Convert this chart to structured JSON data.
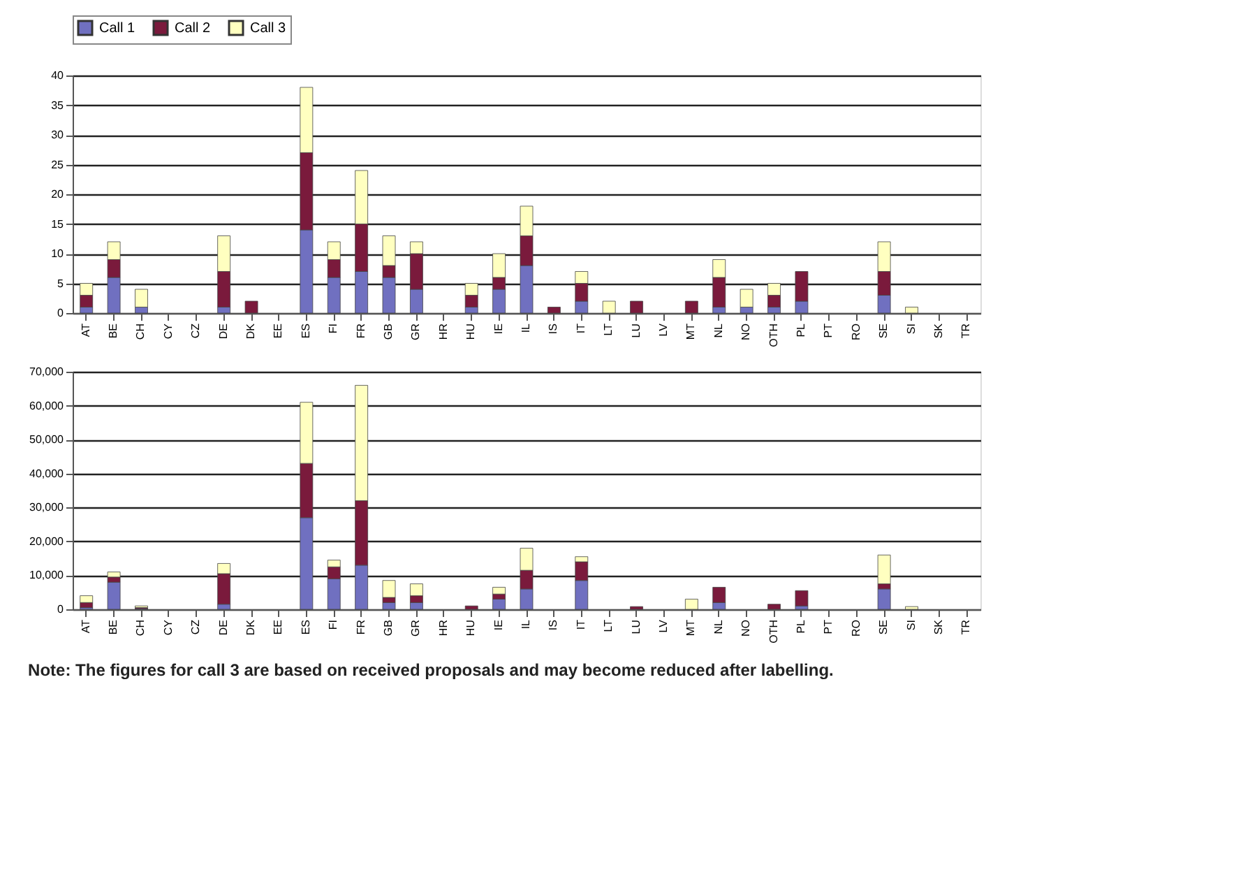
{
  "chart_data": [
    {
      "type": "bar",
      "stacked": true,
      "legend": "top",
      "grid": "y",
      "categories": [
        "AT",
        "BE",
        "CH",
        "CY",
        "CZ",
        "DE",
        "DK",
        "EE",
        "ES",
        "FI",
        "FR",
        "GB",
        "GR",
        "HR",
        "HU",
        "IE",
        "IL",
        "IS",
        "IT",
        "LT",
        "LU",
        "LV",
        "MT",
        "NL",
        "NO",
        "OTH",
        "PL",
        "PT",
        "RO",
        "SE",
        "SI",
        "SK",
        "TR"
      ],
      "series": [
        {
          "name": "Call 1",
          "color": "#7070c0",
          "values": [
            1,
            6,
            1,
            0,
            0,
            1,
            0,
            0,
            14,
            6,
            7,
            6,
            4,
            0,
            1,
            4,
            8,
            0,
            2,
            0,
            0,
            0,
            0,
            1,
            1,
            1,
            2,
            0,
            0,
            3,
            0,
            0,
            0
          ]
        },
        {
          "name": "Call 2",
          "color": "#7a1a3c",
          "values": [
            2,
            3,
            0,
            0,
            0,
            6,
            2,
            0,
            13,
            3,
            8,
            2,
            6,
            0,
            2,
            2,
            5,
            1,
            3,
            0,
            2,
            0,
            2,
            5,
            0,
            2,
            5,
            0,
            0,
            4,
            0,
            0,
            0
          ]
        },
        {
          "name": "Call 3",
          "color": "#ffffc0",
          "values": [
            2,
            3,
            3,
            0,
            0,
            6,
            0,
            0,
            11,
            3,
            9,
            5,
            2,
            0,
            2,
            4,
            5,
            0,
            2,
            2,
            0,
            0,
            0,
            3,
            3,
            2,
            0,
            0,
            0,
            5,
            1,
            0,
            0
          ]
        }
      ],
      "ylim": [
        0,
        40
      ],
      "yticks": [
        0,
        5,
        10,
        15,
        20,
        25,
        30,
        35,
        40
      ]
    },
    {
      "type": "bar",
      "stacked": true,
      "legend": "top",
      "grid": "y",
      "categories": [
        "AT",
        "BE",
        "CH",
        "CY",
        "CZ",
        "DE",
        "DK",
        "EE",
        "ES",
        "FI",
        "FR",
        "GB",
        "GR",
        "HR",
        "HU",
        "IE",
        "IL",
        "IS",
        "IT",
        "LT",
        "LU",
        "LV",
        "MT",
        "NL",
        "NO",
        "OTH",
        "PL",
        "PT",
        "RO",
        "SE",
        "SI",
        "SK",
        "TR"
      ],
      "series": [
        {
          "name": "Call 1",
          "color": "#7070c0",
          "values": [
            500,
            8000,
            200,
            0,
            0,
            1500,
            0,
            0,
            27000,
            9000,
            13000,
            2000,
            2000,
            0,
            0,
            3000,
            6000,
            0,
            8500,
            0,
            0,
            0,
            0,
            2000,
            0,
            0,
            1000,
            0,
            0,
            6000,
            0,
            0,
            0
          ]
        },
        {
          "name": "Call 2",
          "color": "#7a1a3c",
          "values": [
            1500,
            1500,
            300,
            0,
            0,
            9000,
            null,
            0,
            16000,
            3500,
            19000,
            1500,
            2000,
            0,
            1000,
            1500,
            5500,
            null,
            5500,
            0,
            800,
            0,
            0,
            4500,
            0,
            1500,
            4500,
            0,
            0,
            1500,
            0,
            0,
            0
          ]
        },
        {
          "name": "Call 3",
          "color": "#ffffc0",
          "values": [
            2000,
            1500,
            500,
            0,
            0,
            3000,
            0,
            0,
            18000,
            2000,
            34000,
            5000,
            3500,
            0,
            0,
            2000,
            6500,
            0,
            1500,
            0,
            0,
            0,
            3000,
            0,
            0,
            0,
            0,
            0,
            0,
            8500,
            800,
            0,
            0
          ]
        }
      ],
      "ylim": [
        0,
        70000
      ],
      "yticks": [
        0,
        {
          "value": 10000,
          "label": "10,000"
        },
        {
          "value": 20000,
          "label": "20,000"
        },
        {
          "value": 30000,
          "label": "30,000"
        },
        {
          "value": 40000,
          "label": "40,000"
        },
        {
          "value": 50000,
          "label": "50,000"
        },
        {
          "value": 60000,
          "label": "60,000"
        },
        {
          "value": 70000,
          "label": "70,000"
        }
      ]
    },
    {
      "type": "other",
      "annotations": [
        "Note: The figures for call 3 are based on received proposals and may become reduced after labelling."
      ]
    }
  ]
}
